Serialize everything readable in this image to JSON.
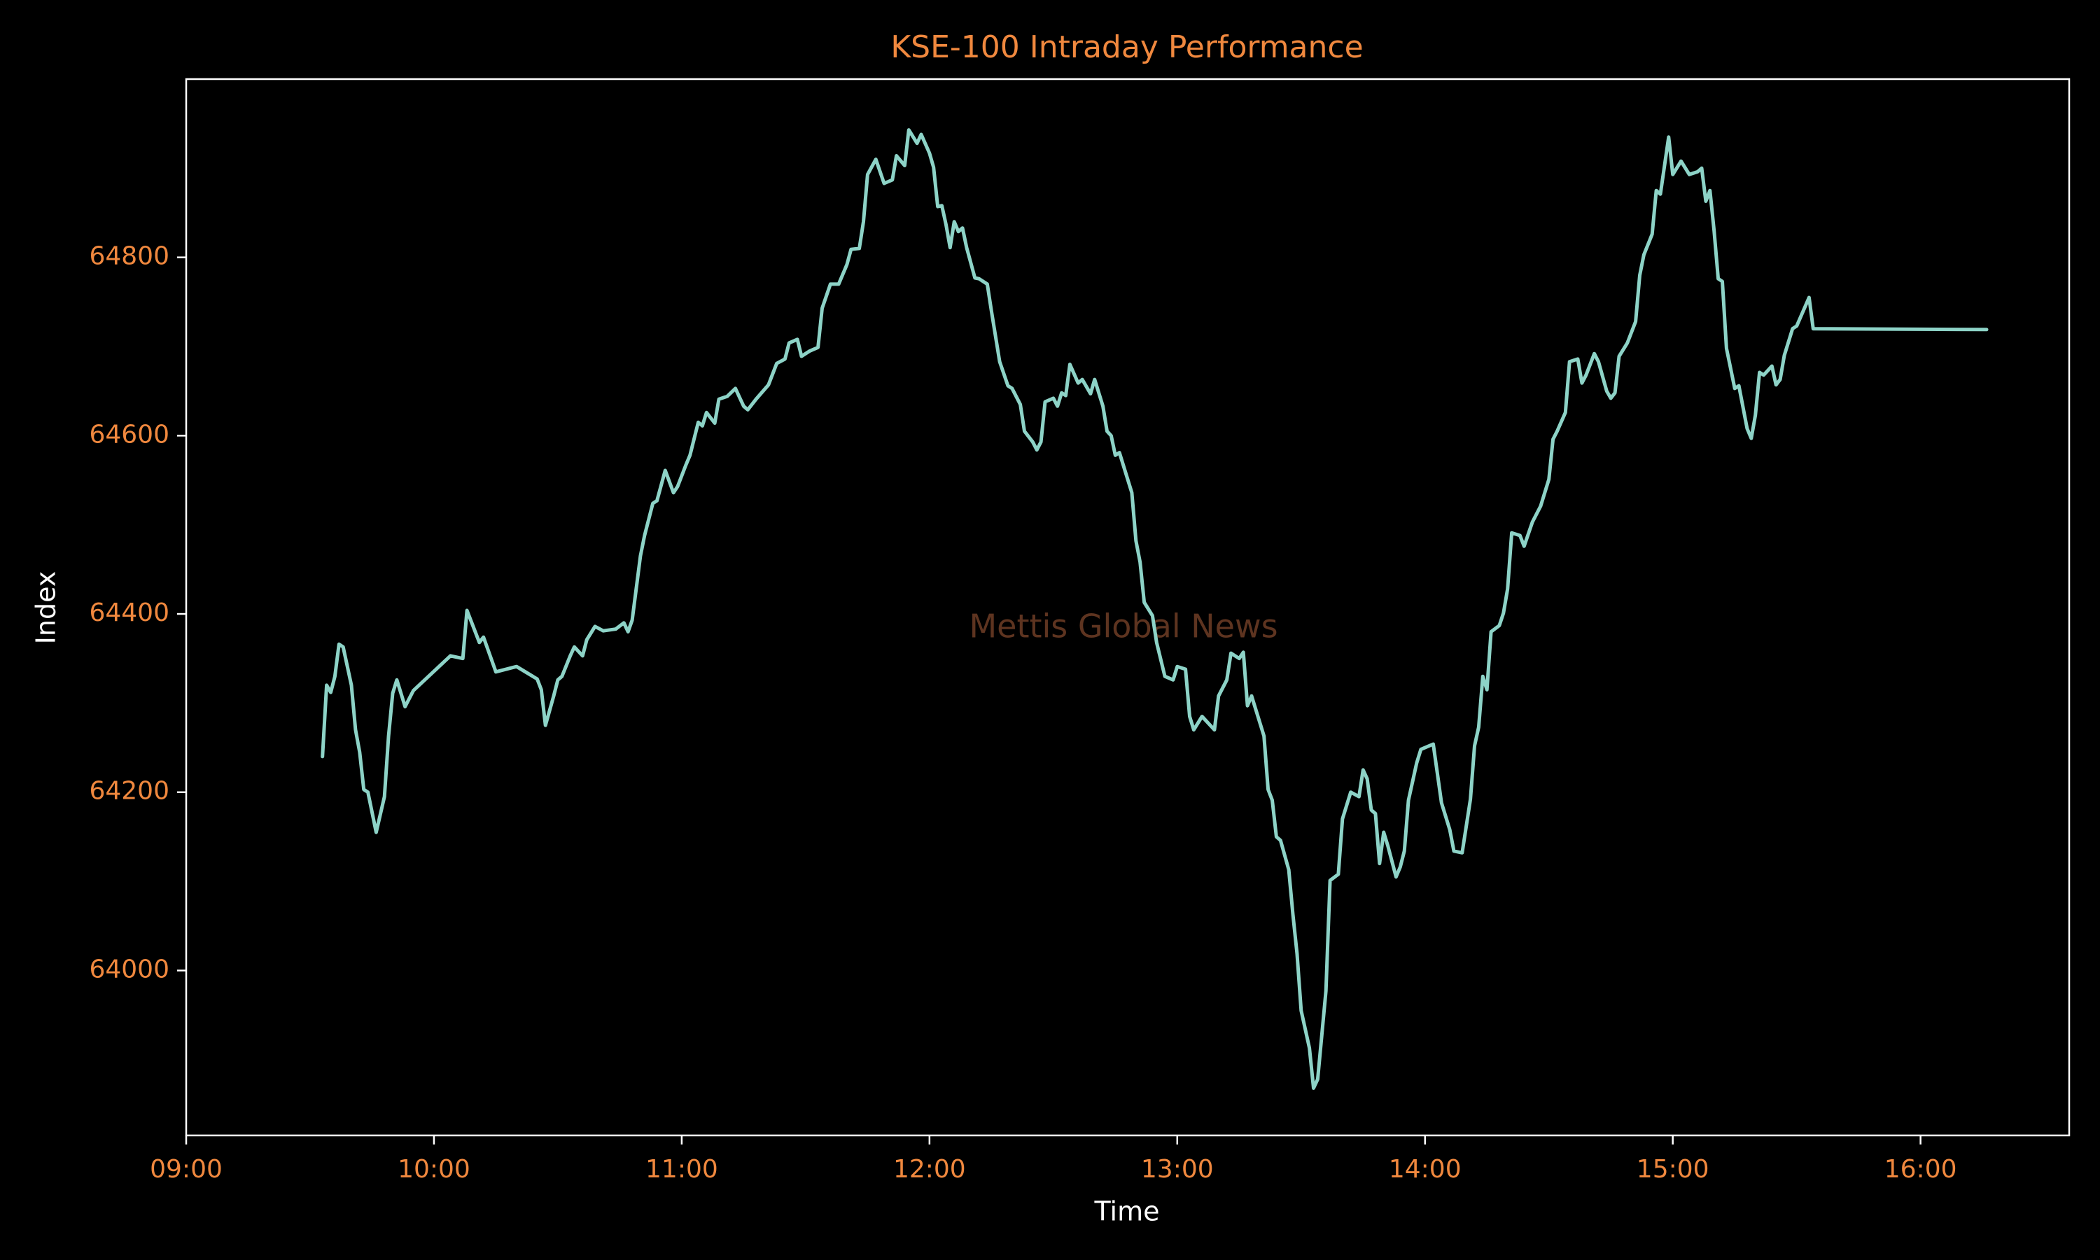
{
  "chart_data": {
    "type": "line",
    "title": "KSE-100 Intraday Performance",
    "xlabel": "Time",
    "ylabel": "Index",
    "annotation": "Mettis Global News",
    "xlim": [
      "09:00",
      "16:36"
    ],
    "xticks": [
      "09:00",
      "10:00",
      "11:00",
      "12:00",
      "13:00",
      "14:00",
      "15:00",
      "16:00"
    ],
    "ylim": [
      63815,
      65000
    ],
    "yticks": [
      64000,
      64200,
      64400,
      64600,
      64800
    ],
    "grid": false,
    "series": [
      {
        "color": "#8dd3c7",
        "x": [
          "09:33",
          "09:34",
          "09:35",
          "09:36",
          "09:37",
          "09:38",
          "09:40",
          "09:41",
          "09:42",
          "09:43",
          "09:44",
          "09:46",
          "09:48",
          "09:49",
          "09:50",
          "09:51",
          "09:53",
          "09:55",
          "10:04",
          "10:07",
          "10:08",
          "10:11",
          "10:12",
          "10:15",
          "10:20",
          "10:25",
          "10:26",
          "10:27",
          "10:29",
          "10:30",
          "10:31",
          "10:33",
          "10:34",
          "10:36",
          "10:37",
          "10:39",
          "10:41",
          "10:44",
          "10:46",
          "10:47",
          "10:48",
          "10:50",
          "10:51",
          "10:53",
          "10:54",
          "10:56",
          "10:58",
          "10:59",
          "11:01",
          "11:02",
          "11:04",
          "11:05",
          "11:06",
          "11:08",
          "11:09",
          "11:11",
          "11:13",
          "11:15",
          "11:16",
          "11:18",
          "11:21",
          "11:23",
          "11:25",
          "11:26",
          "11:28",
          "11:29",
          "11:31",
          "11:33",
          "11:34",
          "11:36",
          "11:38",
          "11:40",
          "11:41",
          "11:43",
          "11:44",
          "11:45",
          "11:47",
          "11:49",
          "11:51",
          "11:52",
          "11:54",
          "11:55",
          "11:57",
          "11:58",
          "12:00",
          "12:01",
          "12:02",
          "12:03",
          "12:04",
          "12:05",
          "12:06",
          "12:07",
          "12:08",
          "12:09",
          "12:11",
          "12:12",
          "12:14",
          "12:15",
          "12:17",
          "12:19",
          "12:20",
          "12:22",
          "12:23",
          "12:25",
          "12:26",
          "12:27",
          "12:28",
          "12:30",
          "12:31",
          "12:32",
          "12:33",
          "12:34",
          "12:36",
          "12:37",
          "12:39",
          "12:40",
          "12:42",
          "12:43",
          "12:44",
          "12:45",
          "12:46",
          "12:47",
          "12:49",
          "12:50",
          "12:51",
          "12:52",
          "12:54",
          "12:55",
          "12:57",
          "12:59",
          "13:00",
          "13:02",
          "13:03",
          "13:04",
          "13:06",
          "13:09",
          "13:10",
          "13:12",
          "13:13",
          "13:15",
          "13:16",
          "13:17",
          "13:18",
          "13:21",
          "13:22",
          "13:23",
          "13:24",
          "13:25",
          "13:27",
          "13:28",
          "13:29",
          "13:30",
          "13:32",
          "13:33",
          "13:34",
          "13:36",
          "13:37",
          "13:39",
          "13:40",
          "13:42",
          "13:44",
          "13:45",
          "13:46",
          "13:47",
          "13:48",
          "13:49",
          "13:50",
          "13:51",
          "13:53",
          "13:54",
          "13:55",
          "13:56",
          "13:58",
          "13:59",
          "14:02",
          "14:04",
          "14:06",
          "14:07",
          "14:09",
          "14:11",
          "14:12",
          "14:13",
          "14:14",
          "14:15",
          "14:16",
          "14:18",
          "14:19",
          "14:20",
          "14:21",
          "14:23",
          "14:24",
          "14:26",
          "14:28",
          "14:30",
          "14:31",
          "14:32",
          "14:34",
          "14:35",
          "14:37",
          "14:38",
          "14:39",
          "14:41",
          "14:42",
          "14:44",
          "14:45",
          "14:46",
          "14:47",
          "14:49",
          "14:51",
          "14:52",
          "14:53",
          "14:55",
          "14:56",
          "14:57",
          "14:59",
          "15:00",
          "15:02",
          "15:04",
          "15:06",
          "15:07",
          "15:08",
          "15:09",
          "15:10",
          "15:11",
          "15:12",
          "15:13",
          "15:15",
          "15:16",
          "15:18",
          "15:19",
          "15:20",
          "15:21",
          "15:22",
          "15:24",
          "15:25",
          "15:26",
          "15:27",
          "15:29",
          "15:30",
          "15:33",
          "15:34",
          "16:16"
        ],
        "values": [
          64240,
          64320,
          64312,
          64330,
          64366,
          64363,
          64320,
          64270,
          64245,
          64203,
          64200,
          64155,
          64195,
          64263,
          64311,
          64326,
          64296,
          64314,
          64353,
          64350,
          64404,
          64368,
          64374,
          64335,
          64341,
          64327,
          64315,
          64275,
          64308,
          64326,
          64330,
          64353,
          64363,
          64353,
          64371,
          64386,
          64381,
          64383,
          64390,
          64380,
          64393,
          64465,
          64488,
          64524,
          64527,
          64561,
          64536,
          64543,
          64567,
          64578,
          64615,
          64611,
          64626,
          64614,
          64641,
          64644,
          64653,
          64633,
          64629,
          64641,
          64657,
          64681,
          64686,
          64704,
          64708,
          64689,
          64695,
          64699,
          64743,
          64770,
          64770,
          64792,
          64809,
          64810,
          64840,
          64893,
          64910,
          64883,
          64887,
          64914,
          64903,
          64943,
          64928,
          64938,
          64917,
          64901,
          64857,
          64858,
          64837,
          64811,
          64840,
          64829,
          64833,
          64811,
          64777,
          64776,
          64770,
          64740,
          64683,
          64656,
          64653,
          64635,
          64605,
          64593,
          64584,
          64593,
          64638,
          64642,
          64633,
          64648,
          64645,
          64680,
          64659,
          64663,
          64647,
          64663,
          64633,
          64605,
          64600,
          64578,
          64581,
          64566,
          64536,
          64482,
          64458,
          64413,
          64398,
          64368,
          64330,
          64326,
          64341,
          64338,
          64285,
          64270,
          64285,
          64270,
          64308,
          64326,
          64356,
          64350,
          64357,
          64297,
          64308,
          64263,
          64203,
          64191,
          64150,
          64146,
          64113,
          64063,
          64019,
          63955,
          63913,
          63868,
          63878,
          63977,
          64101,
          64108,
          64170,
          64200,
          64195,
          64225,
          64215,
          64180,
          64176,
          64120,
          64155,
          64140,
          64105,
          64116,
          64134,
          64191,
          64233,
          64248,
          64254,
          64188,
          64158,
          64134,
          64132,
          64192,
          64252,
          64273,
          64330,
          64315,
          64380,
          64387,
          64401,
          64428,
          64491,
          64488,
          64476,
          64503,
          64521,
          64551,
          64596,
          64605,
          64626,
          64683,
          64686,
          64659,
          64668,
          64692,
          64683,
          64650,
          64642,
          64648,
          64689,
          64704,
          64728,
          64780,
          64803,
          64826,
          64875,
          64871,
          64935,
          64893,
          64908,
          64893,
          64896,
          64900,
          64863,
          64875,
          64830,
          64776,
          64773,
          64698,
          64653,
          64656,
          64608,
          64597,
          64623,
          64671,
          64668,
          64678,
          64657,
          64663,
          64690,
          64720,
          64723,
          64755,
          64720,
          64719
        ]
      }
    ]
  }
}
